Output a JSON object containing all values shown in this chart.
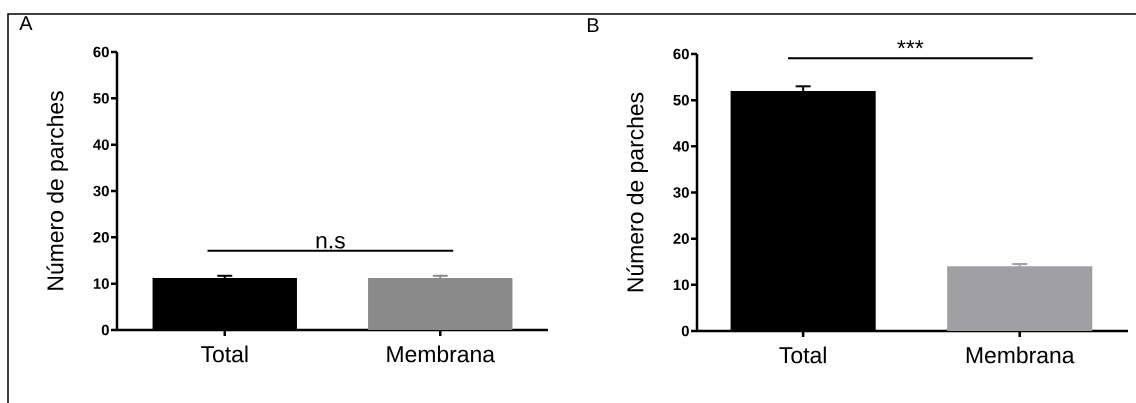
{
  "chart_data": [
    {
      "type": "bar",
      "title": "A",
      "ylabel": "Número de parches",
      "categories": [
        "Total",
        "Membrana"
      ],
      "values": [
        11.2,
        11.2
      ],
      "errors": [
        0.5,
        0.5
      ],
      "colors": [
        "#000000",
        "#8a8a8a"
      ],
      "ylim": [
        0,
        60
      ],
      "yticks": [
        0,
        10,
        20,
        30,
        40,
        50,
        60
      ],
      "grid": false,
      "annotations": [
        "n.s"
      ]
    },
    {
      "type": "bar",
      "title": "B",
      "ylabel": "Número de parches",
      "categories": [
        "Total",
        "Membrana"
      ],
      "values": [
        52,
        14
      ],
      "errors": [
        1,
        0.5
      ],
      "colors": [
        "#000000",
        "#a0a0a3"
      ],
      "ylim": [
        0,
        60
      ],
      "yticks": [
        0,
        10,
        20,
        30,
        40,
        50,
        60
      ],
      "grid": false,
      "annotations": [
        "***"
      ]
    }
  ]
}
